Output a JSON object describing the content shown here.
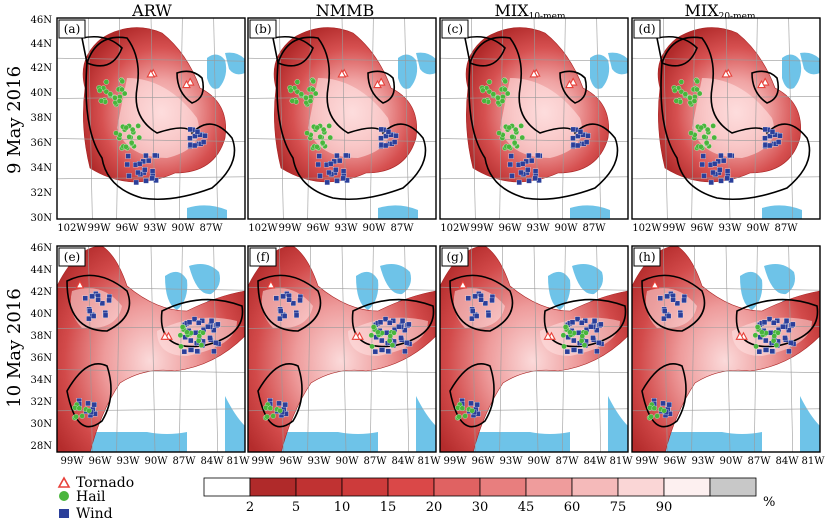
{
  "figure": {
    "columns": [
      {
        "main": "ARW",
        "sub": ""
      },
      {
        "main": "NMMB",
        "sub": ""
      },
      {
        "main": "MIX",
        "sub": "10-mem"
      },
      {
        "main": "MIX",
        "sub": "20-mem"
      }
    ],
    "rows": [
      {
        "label": "9 May 2016",
        "lat_ticks": [
          "46N",
          "44N",
          "42N",
          "40N",
          "38N",
          "36N",
          "34N",
          "32N",
          "30N"
        ],
        "lon_ticks": [
          "102W",
          "99W",
          "96W",
          "93W",
          "90W",
          "87W"
        ],
        "panel_letters": [
          "(a)",
          "(b)",
          "(c)",
          "(d)"
        ]
      },
      {
        "label": "10 May 2016",
        "lat_ticks": [
          "46N",
          "44N",
          "42N",
          "40N",
          "38N",
          "36N",
          "34N",
          "32N",
          "30N",
          "28N"
        ],
        "lon_ticks": [
          "99W",
          "96W",
          "93W",
          "90W",
          "87W",
          "84W",
          "81W"
        ],
        "panel_letters": [
          "(e)",
          "(f)",
          "(g)",
          "(h)"
        ]
      }
    ],
    "legend": {
      "markers": [
        {
          "label": "Tornado",
          "symbol": "triangle",
          "color": "#e8413a"
        },
        {
          "label": "Hail",
          "symbol": "circle",
          "color": "#49b53c"
        },
        {
          "label": "Wind",
          "symbol": "square",
          "color": "#2b3f9a"
        }
      ]
    },
    "colorbar": {
      "ticks": [
        "2",
        "5",
        "10",
        "15",
        "20",
        "30",
        "45",
        "60",
        "75",
        "90"
      ],
      "unit": "%",
      "colors": [
        "#ffffff",
        "#b02a2a",
        "#c03232",
        "#cd3b3b",
        "#da4848",
        "#e06262",
        "#e87e7e",
        "#ef9c9c",
        "#f5baba",
        "#fad6d6",
        "#fdf0f0",
        "#c8c8c8"
      ]
    }
  }
}
